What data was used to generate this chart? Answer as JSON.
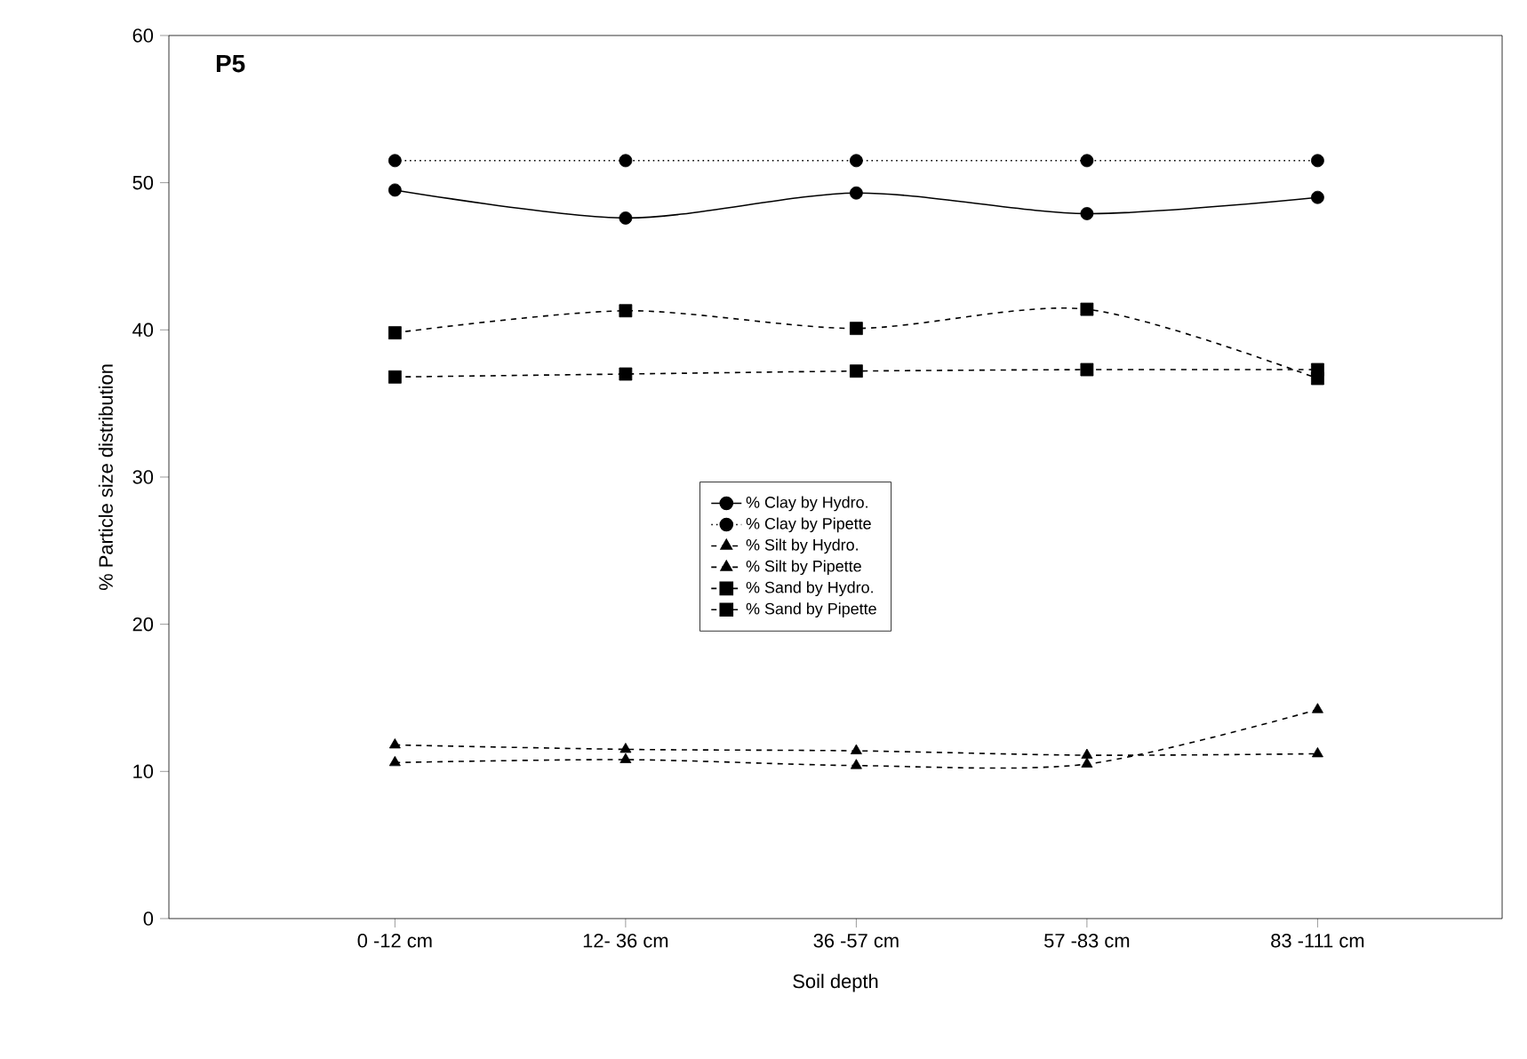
{
  "chart_data": {
    "type": "line",
    "title": "P5",
    "xlabel": "Soil depth",
    "ylabel": "% Particle size distribution",
    "categories": [
      "0 -12 cm",
      "12- 36 cm",
      "36 -57 cm",
      "57 -83 cm",
      "83 -111 cm"
    ],
    "ylim": [
      0,
      60
    ],
    "yticks": [
      0,
      10,
      20,
      30,
      40,
      50,
      60
    ],
    "legend": "center",
    "grid": false,
    "series": [
      {
        "name": "% Clay by Hydro.",
        "color": "#000000",
        "marker": "circle",
        "line_style": "solid",
        "values": [
          49.5,
          47.6,
          49.3,
          47.9,
          49.0
        ]
      },
      {
        "name": "% Clay by Pipette",
        "color": "#000000",
        "marker": "circle",
        "line_style": "dotted",
        "values": [
          51.5,
          51.5,
          51.5,
          51.5,
          51.5
        ]
      },
      {
        "name": "% Silt by Hydro.",
        "color": "#000000",
        "marker": "triangle",
        "line_style": "dashed",
        "values": [
          10.6,
          10.8,
          10.4,
          10.5,
          14.2
        ]
      },
      {
        "name": "% Silt by Pipette",
        "color": "#000000",
        "marker": "triangle",
        "line_style": "dashed",
        "values": [
          11.8,
          11.5,
          11.4,
          11.1,
          11.2
        ]
      },
      {
        "name": "% Sand by Hydro.",
        "color": "#000000",
        "marker": "square",
        "line_style": "dashed",
        "values": [
          39.8,
          41.3,
          40.1,
          41.4,
          36.7
        ]
      },
      {
        "name": "% Sand by Pipette",
        "color": "#000000",
        "marker": "square",
        "line_style": "dashed",
        "values": [
          36.8,
          37.0,
          37.2,
          37.3,
          37.3
        ]
      }
    ]
  }
}
